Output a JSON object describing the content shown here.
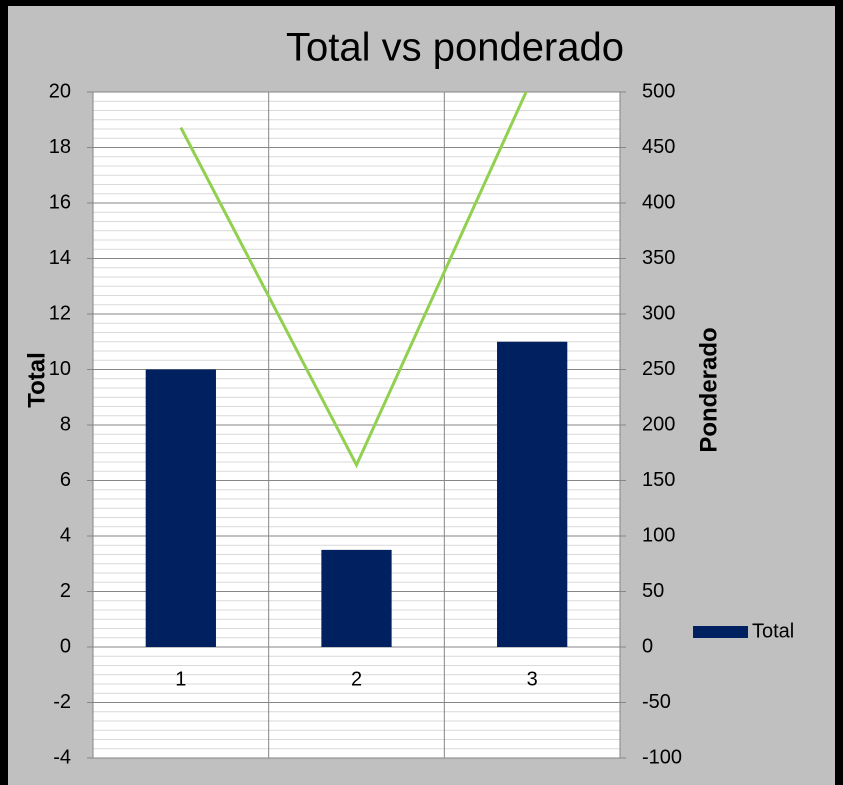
{
  "chart_data": {
    "type": "bar_line",
    "title": "Total vs ponderado",
    "categories": [
      "1",
      "2",
      "3"
    ],
    "series": [
      {
        "name": "Total",
        "type": "bar",
        "color": "#002060",
        "values": [
          10,
          3.5,
          11
        ]
      },
      {
        "type": "line",
        "axis": "y2",
        "color": "#92d050",
        "values": [
          468,
          164,
          512
        ]
      }
    ],
    "ylabel": "Total",
    "y2label": "Ponderado",
    "ylim": [
      -4,
      20
    ],
    "yticks": [
      -4,
      -2,
      0,
      2,
      4,
      6,
      8,
      10,
      12,
      14,
      16,
      18,
      20
    ],
    "y2lim": [
      -100,
      500
    ],
    "y2ticks": [
      -100,
      -50,
      0,
      50,
      100,
      150,
      200,
      250,
      300,
      350,
      400,
      450,
      500
    ],
    "grid": true,
    "minor_grid_divisions": 6,
    "legend": "right"
  }
}
